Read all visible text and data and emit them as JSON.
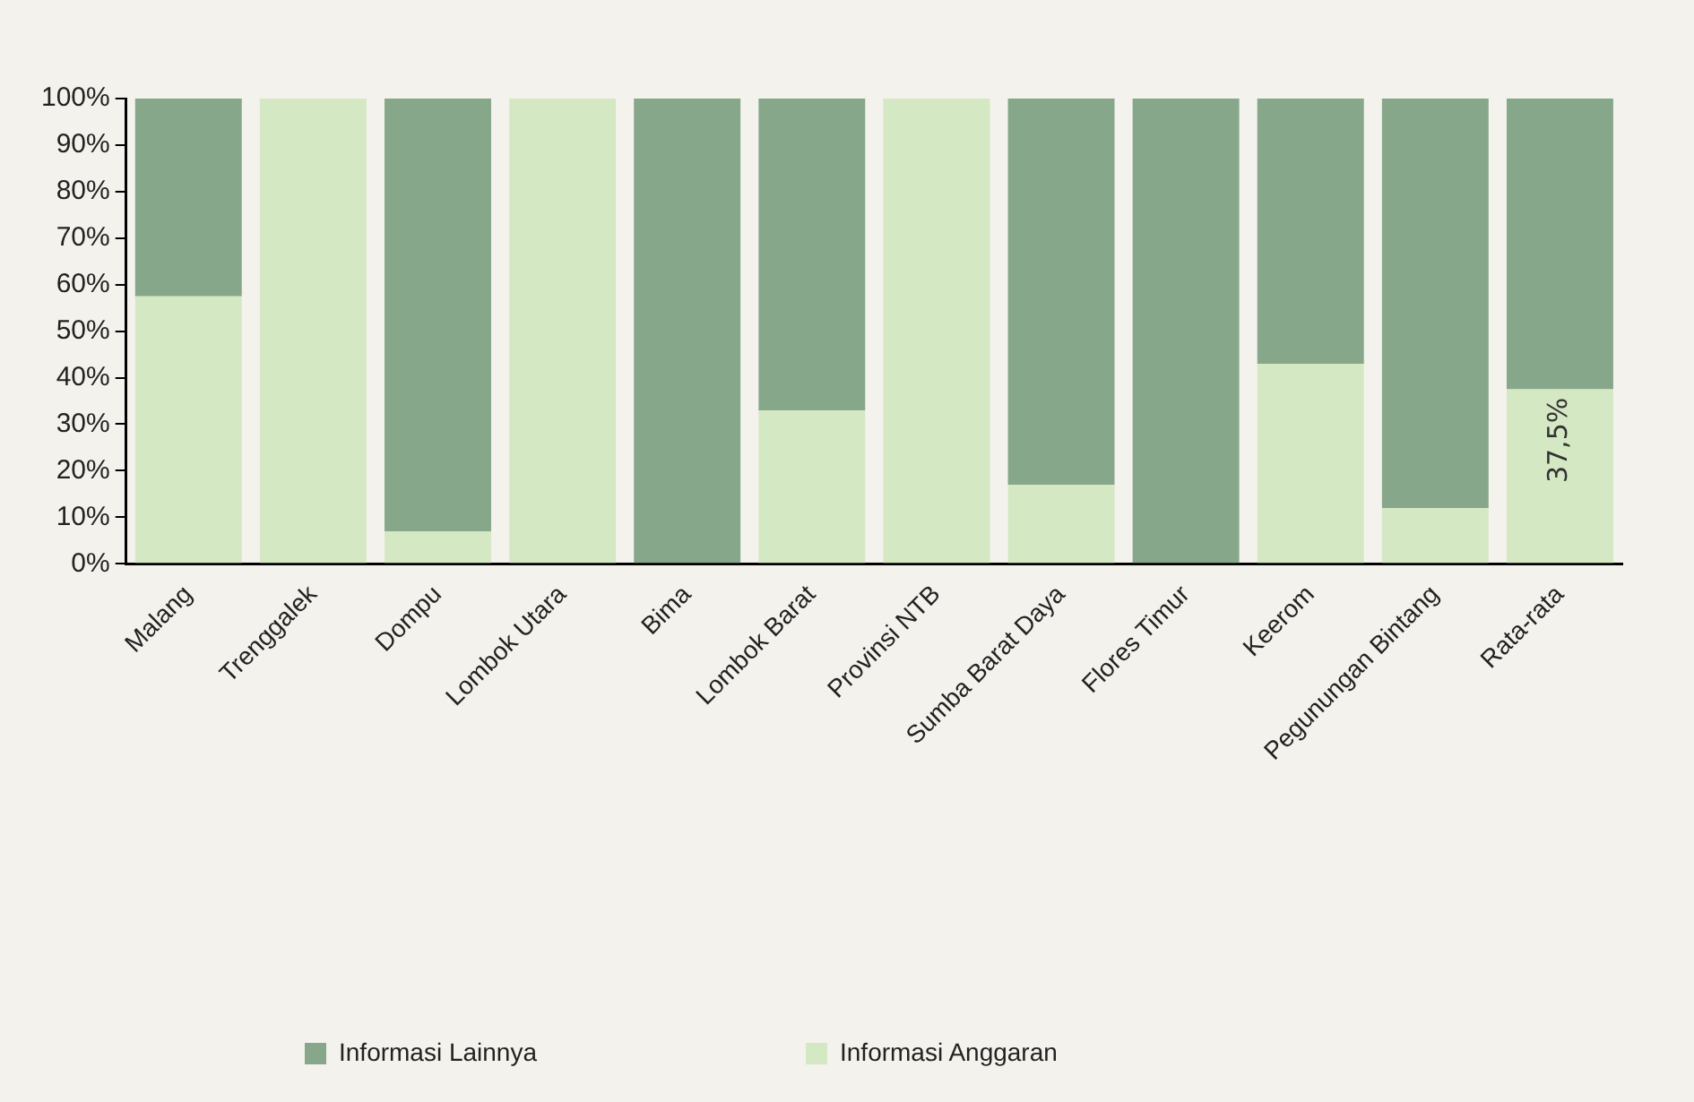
{
  "chart_data": {
    "type": "bar",
    "stacked": true,
    "categories": [
      "Malang",
      "Trenggalek",
      "Dompu",
      "Lombok Utara",
      "Bima",
      "Lombok Barat",
      "Provinsi NTB",
      "Sumba Barat Daya",
      "Flores Timur",
      "Keerom",
      "Pegunungan Bintang",
      "Rata-rata"
    ],
    "series": [
      {
        "name": "Informasi Anggaran",
        "color": "#d5e8c4",
        "values": [
          57.5,
          100,
          7,
          100,
          0,
          33,
          100,
          17,
          0,
          43,
          12,
          37.5
        ],
        "value_labels": [
          null,
          null,
          null,
          null,
          null,
          null,
          null,
          null,
          null,
          null,
          null,
          "37,5%"
        ]
      },
      {
        "name": "Informasi Lainnya",
        "color": "#86a78a",
        "values": [
          42.5,
          0,
          93,
          0,
          100,
          67,
          0,
          83,
          100,
          57,
          88,
          62.5
        ]
      }
    ],
    "ylim": [
      0,
      100
    ],
    "yticks": [
      {
        "value": 0,
        "label": "0%"
      },
      {
        "value": 10,
        "label": "10%"
      },
      {
        "value": 20,
        "label": "20%"
      },
      {
        "value": 30,
        "label": "30%"
      },
      {
        "value": 40,
        "label": "40%"
      },
      {
        "value": 50,
        "label": "50%"
      },
      {
        "value": 60,
        "label": "60%"
      },
      {
        "value": 70,
        "label": "70%"
      },
      {
        "value": 80,
        "label": "80%"
      },
      {
        "value": 90,
        "label": "90%"
      },
      {
        "value": 100,
        "label": "100%"
      }
    ],
    "grid": false,
    "legend": "bottom"
  }
}
